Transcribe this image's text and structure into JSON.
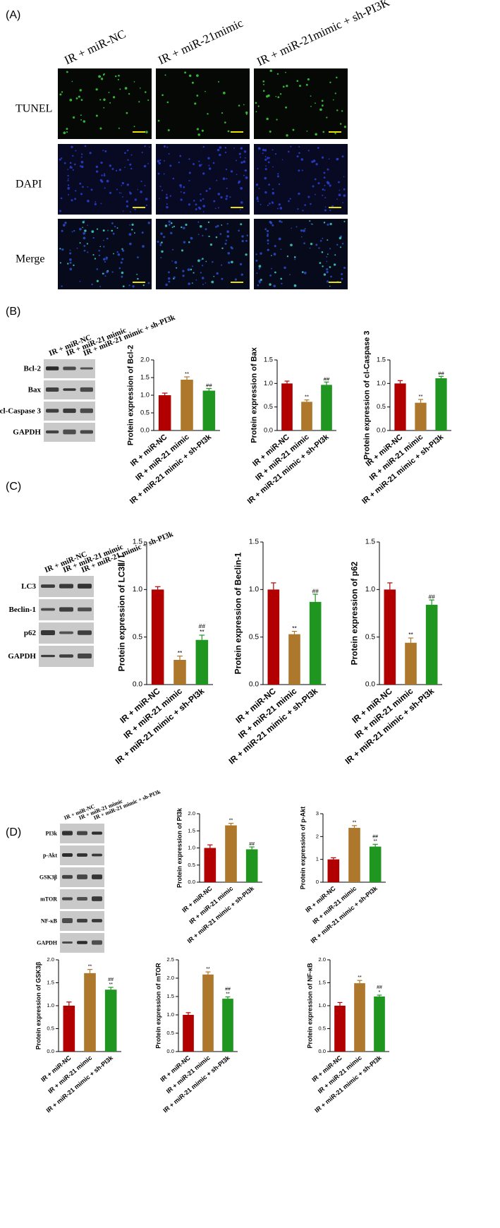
{
  "panel_labels": [
    "(A)",
    "(B)",
    "(C)",
    "(D)"
  ],
  "panel_a": {
    "columns": [
      "IR + miR-NC",
      "IR + miR-21mimic",
      "IR + miR-21mimic + sh-PI3K"
    ],
    "rows": [
      "TUNEL",
      "DAPI",
      "Merge"
    ]
  },
  "blots": [
    {
      "lanes": [
        "IR + miR-NC",
        "IR + miR-21 mimic",
        "IR + miR-21 mimic + sh-PI3k"
      ],
      "rows": [
        "Bcl-2",
        "Bax",
        "cl-Caspase 3",
        "GAPDH"
      ]
    },
    {
      "lanes": [
        "IR + miR-NC",
        "IR + miR-21 mimic",
        "IR + miR-21 mimic + sh-PI3k"
      ],
      "rows": [
        "LC3",
        "Beclin-1",
        "p62",
        "GAPDH"
      ]
    },
    {
      "lanes": [
        "IR + miR-NC",
        "IR + miR-21 mimic",
        "IR + miR-21 mimic + sh-PI3k"
      ],
      "rows": [
        "PI3k",
        "p-Akt",
        "GSK3β",
        "mTOR",
        "NF-κB",
        "GAPDH"
      ]
    }
  ],
  "chart_data": [
    {
      "type": "bar",
      "y_label": "Protein expression of  Bcl-2",
      "categories": [
        "IR + miR-NC",
        "IR + miR-21 mimic",
        "IR + miR-21 mimic + sh-PI3k"
      ],
      "values": [
        1.0,
        1.44,
        1.13
      ],
      "errors": [
        0.06,
        0.08,
        0.06
      ],
      "annotations": [
        null,
        [
          "**"
        ],
        [
          "##"
        ]
      ],
      "colors": [
        "#b20000",
        "#ad772c",
        "#1f961f"
      ],
      "ylim": [
        0,
        2
      ],
      "yticks": [
        {
          "value": 0,
          "label": "0.0"
        },
        0.5,
        {
          "value": 1,
          "label": "1.0"
        },
        1.5,
        {
          "value": 2,
          "label": "2.0"
        }
      ]
    },
    {
      "type": "bar",
      "y_label": "Protein expression of  Bax",
      "categories": [
        "IR + miR-NC",
        "IR + miR-21 mimic",
        "IR + miR-21 mimic + sh-PI3k"
      ],
      "values": [
        1.0,
        0.61,
        0.97
      ],
      "errors": [
        0.05,
        0.04,
        0.06
      ],
      "annotations": [
        null,
        [
          "**"
        ],
        [
          "##"
        ]
      ],
      "colors": [
        "#b20000",
        "#ad772c",
        "#1f961f"
      ],
      "ylim": [
        0,
        1.5
      ],
      "yticks": [
        {
          "value": 0,
          "label": "0.0"
        },
        0.5,
        {
          "value": 1,
          "label": "1.0"
        },
        1.5
      ]
    },
    {
      "type": "bar",
      "y_label": "Protein expression of  cl-Caspase 3",
      "categories": [
        "IR + miR-NC",
        "IR + miR-21 mimic",
        "IR + miR-21 mimic + sh-PI3k"
      ],
      "values": [
        1.0,
        0.59,
        1.11
      ],
      "errors": [
        0.06,
        0.07,
        0.04
      ],
      "annotations": [
        null,
        [
          "**"
        ],
        [
          "##"
        ]
      ],
      "colors": [
        "#b20000",
        "#ad772c",
        "#1f961f"
      ],
      "ylim": [
        0,
        1.5
      ],
      "yticks": [
        {
          "value": 0,
          "label": "0.0"
        },
        0.5,
        {
          "value": 1,
          "label": "1.0"
        },
        1.5
      ]
    },
    {
      "type": "bar",
      "y_label": "Protein expression of  LC3Ⅱ/ Ⅰ",
      "categories": [
        "IR + miR-NC",
        "IR + miR-21 mimic",
        "IR + miR-21 mimic + sh-PI3k"
      ],
      "values": [
        1.0,
        0.26,
        0.47
      ],
      "errors": [
        0.03,
        0.04,
        0.05
      ],
      "annotations": [
        null,
        [
          "**"
        ],
        [
          "##",
          "**"
        ]
      ],
      "colors": [
        "#b20000",
        "#ad772c",
        "#1f961f"
      ],
      "ylim": [
        0,
        1.5
      ],
      "yticks": [
        {
          "value": 0,
          "label": "0.0"
        },
        0.5,
        {
          "value": 1,
          "label": "1.0"
        },
        1.5
      ]
    },
    {
      "type": "bar",
      "y_label": "Protein expression of  Beclin-1",
      "categories": [
        "IR + miR-NC",
        "IR + miR-21 mimic",
        "IR + miR-21 mimic + sh-PI3k"
      ],
      "values": [
        1.0,
        0.53,
        0.87
      ],
      "errors": [
        0.07,
        0.03,
        0.08
      ],
      "annotations": [
        null,
        [
          "**"
        ],
        [
          "##"
        ]
      ],
      "colors": [
        "#b20000",
        "#ad772c",
        "#1f961f"
      ],
      "ylim": [
        0,
        1.5
      ],
      "yticks": [
        {
          "value": 0,
          "label": "0.0"
        },
        0.5,
        {
          "value": 1,
          "label": "1.0"
        },
        1.5
      ]
    },
    {
      "type": "bar",
      "y_label": "Protein expression of  p62",
      "categories": [
        "IR + miR-NC",
        "IR + miR-21 mimic",
        "IR + miR-21 mimic + sh-PI3k"
      ],
      "values": [
        1.0,
        0.44,
        0.84
      ],
      "errors": [
        0.07,
        0.05,
        0.05
      ],
      "annotations": [
        null,
        [
          "**"
        ],
        [
          "##"
        ]
      ],
      "colors": [
        "#b20000",
        "#ad772c",
        "#1f961f"
      ],
      "ylim": [
        0,
        1.5
      ],
      "yticks": [
        {
          "value": 0,
          "label": "0.0"
        },
        0.5,
        {
          "value": 1,
          "label": "1.0"
        },
        1.5
      ]
    },
    {
      "type": "bar",
      "y_label": "Protein expression of  PI3k",
      "categories": [
        "IR + miR-NC",
        "IR + miR-21 mimic",
        "IR + miR-21 mimic + sh-PI3k"
      ],
      "values": [
        1.0,
        1.66,
        0.96
      ],
      "errors": [
        0.09,
        0.06,
        0.07
      ],
      "annotations": [
        null,
        [
          "**"
        ],
        [
          "##"
        ]
      ],
      "colors": [
        "#b20000",
        "#ad772c",
        "#1f961f"
      ],
      "ylim": [
        0,
        2
      ],
      "yticks": [
        {
          "value": 0,
          "label": "0.0"
        },
        0.5,
        {
          "value": 1,
          "label": "1.0"
        },
        1.5,
        {
          "value": 2,
          "label": "2.0"
        }
      ]
    },
    {
      "type": "bar",
      "y_label": "Protein expression of  p-Akt",
      "categories": [
        "IR + miR-NC",
        "IR + miR-21 mimic",
        "IR + miR-21 mimic + sh-PI3k"
      ],
      "values": [
        1.0,
        2.38,
        1.56
      ],
      "errors": [
        0.07,
        0.1,
        0.1
      ],
      "annotations": [
        null,
        [
          "**"
        ],
        [
          "##",
          "**"
        ]
      ],
      "colors": [
        "#b20000",
        "#ad772c",
        "#1f961f"
      ],
      "ylim": [
        0,
        3
      ],
      "yticks": [
        0,
        1,
        2,
        3
      ]
    },
    {
      "type": "bar",
      "y_label": "Protein expression of  GSK3β",
      "categories": [
        "IR + miR-NC",
        "IR + miR-21 mimic",
        "IR + miR-21 mimic + sh-PI3k"
      ],
      "values": [
        1.0,
        1.71,
        1.35
      ],
      "errors": [
        0.08,
        0.08,
        0.05
      ],
      "annotations": [
        null,
        [
          "**"
        ],
        [
          "##",
          "**"
        ]
      ],
      "colors": [
        "#b20000",
        "#ad772c",
        "#1f961f"
      ],
      "ylim": [
        0,
        2
      ],
      "yticks": [
        {
          "value": 0,
          "label": "0.0"
        },
        0.5,
        {
          "value": 1,
          "label": "1.0"
        },
        1.5,
        {
          "value": 2,
          "label": "2.0"
        }
      ]
    },
    {
      "type": "bar",
      "y_label": "Protein expression of  mTOR",
      "categories": [
        "IR + miR-NC",
        "IR + miR-21 mimic",
        "IR + miR-21 mimic + sh-PI3k"
      ],
      "values": [
        1.0,
        2.1,
        1.44
      ],
      "errors": [
        0.06,
        0.07,
        0.05
      ],
      "annotations": [
        null,
        [
          "**"
        ],
        [
          "##",
          "**"
        ]
      ],
      "colors": [
        "#b20000",
        "#ad772c",
        "#1f961f"
      ],
      "ylim": [
        0,
        2.5
      ],
      "yticks": [
        {
          "value": 0,
          "label": "0.0"
        },
        0.5,
        {
          "value": 1,
          "label": "1.0"
        },
        1.5,
        {
          "value": 2,
          "label": "2.0"
        },
        2.5
      ]
    },
    {
      "type": "bar",
      "y_label": "Protein expression of  NF-κB",
      "categories": [
        "IR + miR-NC",
        "IR + miR-21 mimic",
        "IR + miR-21 mimic + sh-PI3k"
      ],
      "values": [
        1.0,
        1.49,
        1.2
      ],
      "errors": [
        0.07,
        0.06,
        0.03
      ],
      "annotations": [
        null,
        [
          "**"
        ],
        [
          "##",
          "*"
        ]
      ],
      "colors": [
        "#b20000",
        "#ad772c",
        "#1f961f"
      ],
      "ylim": [
        0,
        2
      ],
      "yticks": [
        {
          "value": 0,
          "label": "0.0"
        },
        0.5,
        {
          "value": 1,
          "label": "1.0"
        },
        1.5,
        {
          "value": 2,
          "label": "2.0"
        }
      ]
    }
  ]
}
